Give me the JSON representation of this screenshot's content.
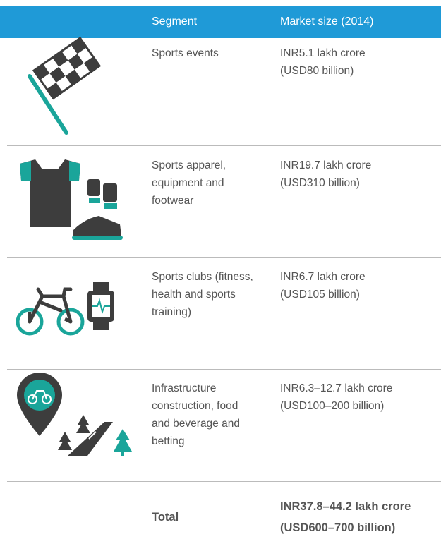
{
  "table": {
    "header": [
      "Segment",
      "Market size (2014)"
    ],
    "rows": [
      {
        "segment": [
          "Sports events"
        ],
        "market": [
          "INR5.1 lakh crore",
          "(USD80 billion)"
        ]
      },
      {
        "segment": [
          "Sports apparel,",
          "equipment and",
          "footwear"
        ],
        "market": [
          "INR19.7  lakh crore",
          "(USD310 billion)"
        ]
      },
      {
        "segment": [
          "Sports clubs (fitness,",
          "health and sports",
          "training)"
        ],
        "market": [
          "INR6.7  lakh crore",
          "(USD105 billion)"
        ]
      },
      {
        "segment": [
          "Infrastructure",
          "construction, food",
          "and beverage and",
          "betting"
        ],
        "market": [
          "INR6.3–12.7  lakh crore",
          "(USD100–200 billion)"
        ]
      }
    ],
    "total": {
      "label": "Total",
      "market": [
        "INR37.8–44.2  lakh crore",
        "(USD600–700 billion)"
      ]
    }
  }
}
